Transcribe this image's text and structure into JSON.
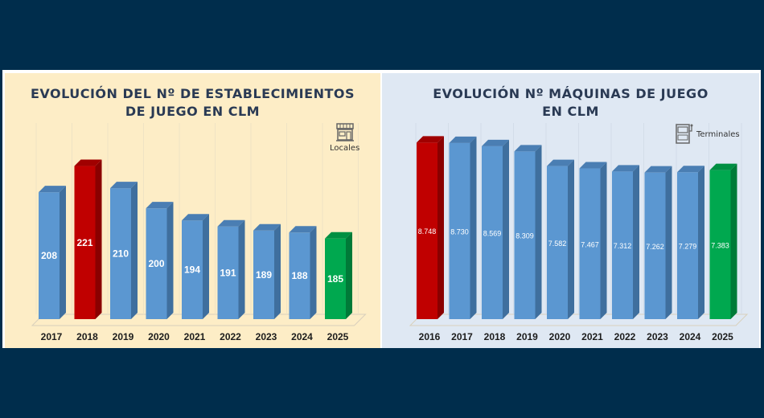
{
  "chart_data": [
    {
      "type": "bar",
      "title_lines": [
        "EVOLUCIÓN DEL Nº DE ESTABLECIMIENTOS",
        "DE JUEGO EN CLM"
      ],
      "legend": "Locales",
      "legend_icon": "store-icon",
      "categories": [
        "2017",
        "2018",
        "2019",
        "2020",
        "2021",
        "2022",
        "2023",
        "2024",
        "2025"
      ],
      "values": [
        208,
        221,
        210,
        200,
        194,
        191,
        189,
        188,
        185
      ],
      "labels": [
        "208",
        "221",
        "210",
        "200",
        "194",
        "191",
        "189",
        "188",
        "185"
      ],
      "highlight": {
        "1": "red",
        "8": "green"
      },
      "ylim": [
        145,
        228
      ],
      "grid": true
    },
    {
      "type": "bar",
      "title_lines": [
        "EVOLUCIÓN Nº MÁQUINAS DE JUEGO",
        "EN CLM"
      ],
      "legend": "Terminales",
      "legend_icon": "slot-machine-icon",
      "categories": [
        "2016",
        "2017",
        "2018",
        "2019",
        "2020",
        "2021",
        "2022",
        "2023",
        "2024",
        "2025"
      ],
      "values": [
        8748,
        8730,
        8569,
        8309,
        7582,
        7467,
        7312,
        7262,
        7279,
        7383
      ],
      "labels": [
        "8.748",
        "8.730",
        "8.569",
        "8.309",
        "7.582",
        "7.467",
        "7.312",
        "7.262",
        "7.279",
        "7.383"
      ],
      "highlight": {
        "0": "red",
        "9": "green"
      },
      "ylim": [
        0,
        9400
      ],
      "grid": true
    }
  ],
  "colors": {
    "blue_face": "#5b97d1",
    "blue_side": "#3f6f9e",
    "blue_top": "#4a7eb3",
    "red_face": "#c00000",
    "red_side": "#8a0000",
    "red_top": "#a00000",
    "green_face": "#00a84f",
    "green_side": "#007a38",
    "green_top": "#008f42"
  }
}
